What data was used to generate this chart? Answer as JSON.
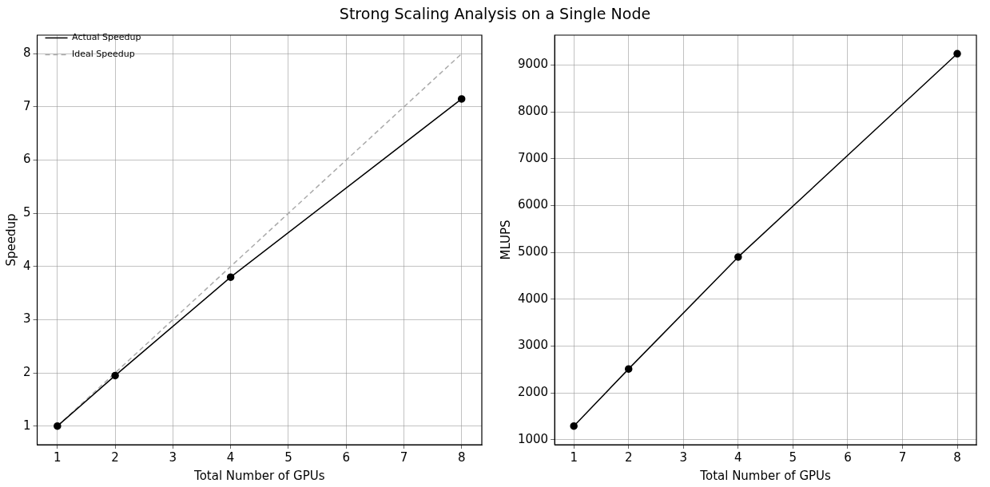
{
  "chart_data": [
    {
      "type": "line",
      "title": "Strong Scaling Analysis on a Single Node",
      "xlabel": "Total Number of GPUs",
      "ylabel": "Speedup",
      "x": [
        1,
        2,
        4,
        8
      ],
      "series": [
        {
          "name": "Actual Speedup",
          "color": "#000000",
          "values": [
            1,
            1.95,
            3.8,
            7.15
          ],
          "marker": "circle",
          "line_style": "solid"
        },
        {
          "name": "Ideal Speedup",
          "color": "#aaaaaa",
          "values": [
            1,
            2,
            4,
            8
          ],
          "marker": "none",
          "line_style": "dashed"
        }
      ],
      "xlim": [
        0.65,
        8.35
      ],
      "xticks": [
        1,
        2,
        3,
        4,
        5,
        6,
        7,
        8
      ],
      "ylim": [
        0.65,
        8.35
      ],
      "yticks": [
        1,
        2,
        3,
        4,
        5,
        6,
        7,
        8
      ],
      "grid": true,
      "legend": "top left"
    },
    {
      "type": "line",
      "xlabel": "Total Number of GPUs",
      "ylabel": "MLUPS",
      "x": [
        1,
        2,
        4,
        8
      ],
      "series": [
        {
          "color": "#000000",
          "values": [
            1290,
            2510,
            4900,
            9240
          ],
          "marker": "circle",
          "line_style": "solid"
        }
      ],
      "xlim": [
        0.65,
        8.35
      ],
      "xticks": [
        1,
        2,
        3,
        4,
        5,
        6,
        7,
        8
      ],
      "ylim": [
        893,
        9637
      ],
      "yticks": [
        1000,
        2000,
        3000,
        4000,
        5000,
        6000,
        7000,
        8000,
        9000
      ],
      "grid": true
    }
  ]
}
